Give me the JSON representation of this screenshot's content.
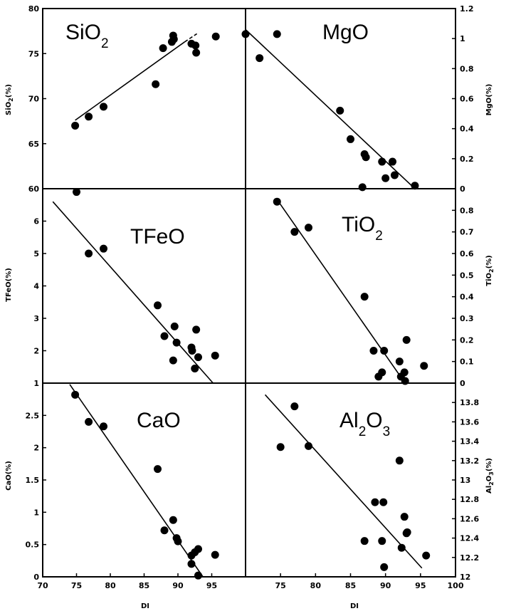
{
  "figure": {
    "x_axis_label": "DI"
  },
  "chart_data": [
    {
      "type": "scatter",
      "name": "SiO2",
      "title": "SiO",
      "title_sub": "2",
      "ylabel": "SiO2(%)",
      "ylabel_main": "SiO",
      "ylabel_sub": "2",
      "ylabel_tail": "(%)",
      "xlim": [
        70,
        100
      ],
      "ylim": [
        60,
        80
      ],
      "y_side": "left",
      "xticks": [],
      "yticks": [
        60,
        65,
        70,
        75,
        80
      ],
      "points": [
        [
          74.8,
          67.0
        ],
        [
          76.8,
          68.0
        ],
        [
          79.0,
          69.1
        ],
        [
          86.7,
          71.6
        ],
        [
          87.8,
          75.6
        ],
        [
          89.1,
          76.3
        ],
        [
          89.3,
          77.0
        ],
        [
          89.4,
          76.6
        ],
        [
          92.0,
          76.1
        ],
        [
          92.6,
          75.9
        ],
        [
          92.7,
          75.1
        ],
        [
          95.6,
          76.9
        ]
      ],
      "fit": [
        [
          74.8,
          67.6
        ],
        [
          91.0,
          76.3
        ]
      ],
      "fit_dashed": [
        [
          91.0,
          76.3
        ],
        [
          92.8,
          77.2
        ]
      ]
    },
    {
      "type": "scatter",
      "name": "MgO",
      "title": "MgO",
      "title_sub": "",
      "ylabel": "MgO(%)",
      "ylabel_main": "MgO",
      "ylabel_sub": "",
      "ylabel_tail": "(%)",
      "xlim": [
        70,
        100
      ],
      "ylim": [
        0,
        1.2
      ],
      "y_side": "right",
      "xticks": [],
      "yticks": [
        "0",
        "0.2",
        "0.4",
        "0.6",
        "0.8",
        "1",
        "1.2"
      ],
      "points": [
        [
          70.0,
          1.03
        ],
        [
          72.0,
          0.87
        ],
        [
          74.5,
          1.03
        ],
        [
          83.5,
          0.52
        ],
        [
          85.0,
          0.33
        ],
        [
          87.0,
          0.23
        ],
        [
          87.2,
          0.21
        ],
        [
          86.7,
          0.01
        ],
        [
          89.5,
          0.18
        ],
        [
          90.0,
          0.07
        ],
        [
          91.0,
          0.18
        ],
        [
          91.3,
          0.09
        ],
        [
          94.2,
          0.02
        ]
      ],
      "fit": [
        [
          70.0,
          1.06
        ],
        [
          94.2,
          0.0
        ]
      ]
    },
    {
      "type": "scatter",
      "name": "TFeO",
      "title": "TFeO",
      "title_sub": "",
      "ylabel": "TFeO(%)",
      "ylabel_main": "TFeO",
      "ylabel_sub": "",
      "ylabel_tail": "(%)",
      "xlim": [
        70,
        100
      ],
      "ylim": [
        1,
        7
      ],
      "y_side": "left",
      "xticks": [],
      "yticks": [
        "1",
        "2",
        "3",
        "4",
        "5",
        "6"
      ],
      "points": [
        [
          75.0,
          6.9
        ],
        [
          76.8,
          5.0
        ],
        [
          79.0,
          5.15
        ],
        [
          87.0,
          3.4
        ],
        [
          88.0,
          2.45
        ],
        [
          89.3,
          1.7
        ],
        [
          89.5,
          2.75
        ],
        [
          89.8,
          2.25
        ],
        [
          92.0,
          2.1
        ],
        [
          92.1,
          2.0
        ],
        [
          92.5,
          1.45
        ],
        [
          92.7,
          2.65
        ],
        [
          93.0,
          1.8
        ],
        [
          95.5,
          1.85
        ]
      ],
      "fit": [
        [
          71.5,
          6.6
        ],
        [
          95.2,
          1.0
        ]
      ]
    },
    {
      "type": "scatter",
      "name": "TiO2",
      "title": "TiO",
      "title_sub": "2",
      "ylabel": "TiO2(%)",
      "ylabel_main": "TiO",
      "ylabel_sub": "2",
      "ylabel_tail": "(%)",
      "xlim": [
        70,
        100
      ],
      "ylim": [
        0,
        0.9
      ],
      "y_side": "right",
      "xticks": [],
      "yticks": [
        "0",
        "0.1",
        "0.2",
        "0.3",
        "0.4",
        "0.5",
        "0.6",
        "0.7",
        "0.8"
      ],
      "points": [
        [
          74.5,
          0.84
        ],
        [
          77.0,
          0.7
        ],
        [
          79.0,
          0.72
        ],
        [
          87.0,
          0.4
        ],
        [
          88.3,
          0.15
        ],
        [
          89.8,
          0.15
        ],
        [
          89.0,
          0.03
        ],
        [
          89.5,
          0.05
        ],
        [
          92.0,
          0.1
        ],
        [
          92.2,
          0.03
        ],
        [
          92.7,
          0.05
        ],
        [
          93.0,
          0.2
        ],
        [
          92.8,
          0.01
        ],
        [
          95.5,
          0.08
        ]
      ],
      "fit": [
        [
          74.5,
          0.85
        ],
        [
          92.8,
          0.0
        ]
      ]
    },
    {
      "type": "scatter",
      "name": "CaO",
      "title": "CaO",
      "title_sub": "",
      "ylabel": "CaO(%)",
      "ylabel_main": "CaO",
      "ylabel_sub": "",
      "ylabel_tail": "(%)",
      "xlim": [
        70,
        100
      ],
      "ylim": [
        0,
        3
      ],
      "y_side": "left",
      "xticks": [
        "70",
        "75",
        "80",
        "85",
        "90",
        "95"
      ],
      "yticks": [
        "0",
        "0.5",
        "1",
        "1.5",
        "2",
        "2.5"
      ],
      "points": [
        [
          74.8,
          2.82
        ],
        [
          76.8,
          2.4
        ],
        [
          79.0,
          2.33
        ],
        [
          87.0,
          1.67
        ],
        [
          88.0,
          0.72
        ],
        [
          89.3,
          0.88
        ],
        [
          89.8,
          0.6
        ],
        [
          90.0,
          0.55
        ],
        [
          92.0,
          0.33
        ],
        [
          92.5,
          0.38
        ],
        [
          92.0,
          0.2
        ],
        [
          93.0,
          0.43
        ],
        [
          93.0,
          0.02
        ],
        [
          95.5,
          0.34
        ]
      ],
      "fit": [
        [
          74.0,
          2.98
        ],
        [
          93.7,
          0.0
        ]
      ]
    },
    {
      "type": "scatter",
      "name": "Al2O3",
      "title": "Al",
      "title_sub": "2",
      "title_mid": "O",
      "title_sub2": "3",
      "ylabel": "Al2O3(%)",
      "ylabel_main": "Al",
      "ylabel_sub": "2",
      "ylabel_mid": "O",
      "ylabel_sub2": "3",
      "ylabel_tail": "(%)",
      "xlim": [
        70,
        100
      ],
      "ylim": [
        12,
        14
      ],
      "y_side": "right",
      "xticks": [
        "75",
        "80",
        "85",
        "90",
        "95",
        "100"
      ],
      "yticks": [
        "12",
        "12.2",
        "12.4",
        "12.6",
        "12.8",
        "13",
        "13.2",
        "13.4",
        "13.6",
        "13.8"
      ],
      "points": [
        [
          75.0,
          13.34
        ],
        [
          77.0,
          13.76
        ],
        [
          79.0,
          13.35
        ],
        [
          87.0,
          12.37
        ],
        [
          88.5,
          12.77
        ],
        [
          89.5,
          12.37
        ],
        [
          89.7,
          12.77
        ],
        [
          89.8,
          12.1
        ],
        [
          92.0,
          13.2
        ],
        [
          92.3,
          12.3
        ],
        [
          92.7,
          12.62
        ],
        [
          93.0,
          12.45
        ],
        [
          93.1,
          12.46
        ],
        [
          95.8,
          12.22
        ]
      ],
      "fit": [
        [
          72.8,
          13.88
        ],
        [
          95.2,
          12.09
        ]
      ]
    }
  ]
}
